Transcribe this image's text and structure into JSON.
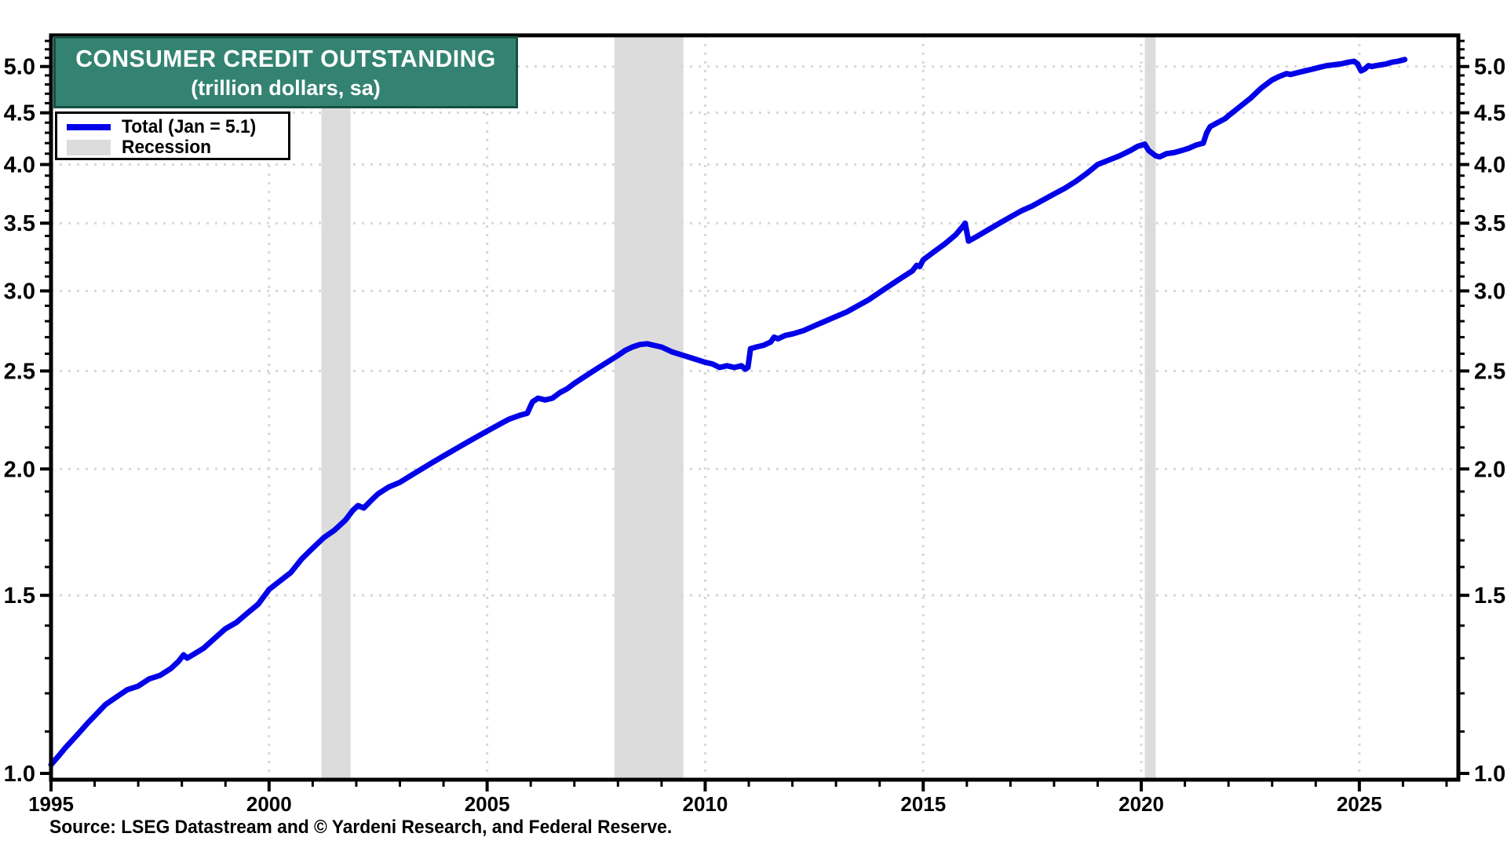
{
  "title": {
    "line1": "CONSUMER CREDIT OUTSTANDING",
    "line2": "(trillion dollars, sa)"
  },
  "legend": {
    "total_label": "Total  (Jan = 5.1)",
    "recession_label": "Recession"
  },
  "source": "Source: LSEG Datastream and © Yardeni Research, and Federal Reserve.",
  "colors": {
    "line": "#0202e8",
    "recession_band": "#dcdcdc",
    "title_bg": "#348372",
    "title_border": "#174f43",
    "grid": "#d8d8d8",
    "axis": "#000000",
    "label_text": "#000000"
  },
  "chart_data": {
    "type": "line",
    "title": "CONSUMER CREDIT OUTSTANDING (trillion dollars, sa)",
    "y_scale": "log",
    "y_range": [
      1.0,
      5.37
    ],
    "x_range": [
      1995,
      2027.27
    ],
    "grid": "dotted",
    "legend_position": "top-left",
    "y_ticks": [
      1.0,
      1.5,
      2.0,
      2.5,
      3.0,
      3.5,
      4.0,
      4.5,
      5.0
    ],
    "y_tick_labels": [
      "1.0",
      "1.5",
      "2.0",
      "2.5",
      "3.0",
      "3.5",
      "4.0",
      "4.5",
      "5.0"
    ],
    "y_minor_step": 0.1,
    "x_ticks_major": [
      1995,
      2000,
      2005,
      2010,
      2015,
      2020,
      2025
    ],
    "x_tick_labels": [
      "1995",
      "2000",
      "2005",
      "2010",
      "2015",
      "2020",
      "2025"
    ],
    "x_minor_step": 1,
    "recessions": [
      [
        2001.2,
        2001.87
      ],
      [
        2007.92,
        2009.5
      ],
      [
        2020.08,
        2020.33
      ]
    ],
    "series": [
      {
        "name": "Total (Jan = 5.1)",
        "points": [
          [
            1995.0,
            1.02
          ],
          [
            1995.17,
            1.04
          ],
          [
            1995.33,
            1.06
          ],
          [
            1995.5,
            1.08
          ],
          [
            1995.67,
            1.1
          ],
          [
            1995.83,
            1.12
          ],
          [
            1996.0,
            1.14
          ],
          [
            1996.25,
            1.17
          ],
          [
            1996.5,
            1.19
          ],
          [
            1996.75,
            1.21
          ],
          [
            1997.0,
            1.22
          ],
          [
            1997.25,
            1.24
          ],
          [
            1997.5,
            1.25
          ],
          [
            1997.75,
            1.27
          ],
          [
            1997.92,
            1.29
          ],
          [
            1998.04,
            1.31
          ],
          [
            1998.12,
            1.3
          ],
          [
            1998.25,
            1.31
          ],
          [
            1998.5,
            1.33
          ],
          [
            1998.75,
            1.36
          ],
          [
            1999.0,
            1.39
          ],
          [
            1999.25,
            1.41
          ],
          [
            1999.5,
            1.44
          ],
          [
            1999.75,
            1.47
          ],
          [
            2000.0,
            1.52
          ],
          [
            2000.25,
            1.55
          ],
          [
            2000.5,
            1.58
          ],
          [
            2000.75,
            1.63
          ],
          [
            2001.0,
            1.67
          ],
          [
            2001.25,
            1.71
          ],
          [
            2001.5,
            1.74
          ],
          [
            2001.75,
            1.78
          ],
          [
            2001.92,
            1.82
          ],
          [
            2002.04,
            1.84
          ],
          [
            2002.17,
            1.83
          ],
          [
            2002.33,
            1.86
          ],
          [
            2002.5,
            1.89
          ],
          [
            2002.75,
            1.92
          ],
          [
            2003.0,
            1.94
          ],
          [
            2003.25,
            1.97
          ],
          [
            2003.5,
            2.0
          ],
          [
            2003.75,
            2.03
          ],
          [
            2004.0,
            2.06
          ],
          [
            2004.25,
            2.09
          ],
          [
            2004.5,
            2.12
          ],
          [
            2004.75,
            2.15
          ],
          [
            2005.0,
            2.18
          ],
          [
            2005.25,
            2.21
          ],
          [
            2005.5,
            2.24
          ],
          [
            2005.75,
            2.26
          ],
          [
            2005.92,
            2.27
          ],
          [
            2006.04,
            2.33
          ],
          [
            2006.17,
            2.35
          ],
          [
            2006.33,
            2.34
          ],
          [
            2006.5,
            2.35
          ],
          [
            2006.67,
            2.38
          ],
          [
            2006.83,
            2.4
          ],
          [
            2007.0,
            2.43
          ],
          [
            2007.25,
            2.47
          ],
          [
            2007.5,
            2.51
          ],
          [
            2007.75,
            2.55
          ],
          [
            2008.0,
            2.59
          ],
          [
            2008.17,
            2.62
          ],
          [
            2008.33,
            2.64
          ],
          [
            2008.5,
            2.655
          ],
          [
            2008.67,
            2.66
          ],
          [
            2008.83,
            2.65
          ],
          [
            2009.0,
            2.64
          ],
          [
            2009.25,
            2.61
          ],
          [
            2009.5,
            2.59
          ],
          [
            2009.75,
            2.57
          ],
          [
            2010.0,
            2.55
          ],
          [
            2010.17,
            2.54
          ],
          [
            2010.33,
            2.52
          ],
          [
            2010.5,
            2.53
          ],
          [
            2010.67,
            2.52
          ],
          [
            2010.83,
            2.53
          ],
          [
            2010.92,
            2.51
          ],
          [
            2010.98,
            2.52
          ],
          [
            2011.04,
            2.63
          ],
          [
            2011.17,
            2.64
          ],
          [
            2011.33,
            2.65
          ],
          [
            2011.5,
            2.67
          ],
          [
            2011.58,
            2.7
          ],
          [
            2011.67,
            2.69
          ],
          [
            2011.83,
            2.71
          ],
          [
            2012.0,
            2.72
          ],
          [
            2012.25,
            2.74
          ],
          [
            2012.5,
            2.77
          ],
          [
            2012.75,
            2.8
          ],
          [
            2013.0,
            2.83
          ],
          [
            2013.25,
            2.86
          ],
          [
            2013.5,
            2.9
          ],
          [
            2013.75,
            2.94
          ],
          [
            2014.0,
            2.99
          ],
          [
            2014.25,
            3.04
          ],
          [
            2014.5,
            3.09
          ],
          [
            2014.75,
            3.14
          ],
          [
            2014.85,
            3.18
          ],
          [
            2014.92,
            3.17
          ],
          [
            2015.0,
            3.22
          ],
          [
            2015.25,
            3.28
          ],
          [
            2015.5,
            3.34
          ],
          [
            2015.75,
            3.41
          ],
          [
            2015.92,
            3.48
          ],
          [
            2015.96,
            3.5
          ],
          [
            2016.04,
            3.36
          ],
          [
            2016.25,
            3.4
          ],
          [
            2016.5,
            3.45
          ],
          [
            2016.75,
            3.5
          ],
          [
            2017.0,
            3.55
          ],
          [
            2017.25,
            3.6
          ],
          [
            2017.5,
            3.64
          ],
          [
            2017.75,
            3.69
          ],
          [
            2018.0,
            3.74
          ],
          [
            2018.25,
            3.79
          ],
          [
            2018.5,
            3.85
          ],
          [
            2018.75,
            3.92
          ],
          [
            2019.0,
            4.0
          ],
          [
            2019.25,
            4.04
          ],
          [
            2019.5,
            4.08
          ],
          [
            2019.75,
            4.13
          ],
          [
            2019.92,
            4.17
          ],
          [
            2020.08,
            4.19
          ],
          [
            2020.17,
            4.13
          ],
          [
            2020.33,
            4.08
          ],
          [
            2020.42,
            4.07
          ],
          [
            2020.58,
            4.1
          ],
          [
            2020.75,
            4.11
          ],
          [
            2020.92,
            4.13
          ],
          [
            2021.08,
            4.15
          ],
          [
            2021.25,
            4.18
          ],
          [
            2021.42,
            4.2
          ],
          [
            2021.5,
            4.3
          ],
          [
            2021.58,
            4.36
          ],
          [
            2021.75,
            4.4
          ],
          [
            2021.92,
            4.44
          ],
          [
            2022.0,
            4.47
          ],
          [
            2022.25,
            4.56
          ],
          [
            2022.5,
            4.65
          ],
          [
            2022.75,
            4.76
          ],
          [
            2023.0,
            4.85
          ],
          [
            2023.17,
            4.89
          ],
          [
            2023.33,
            4.92
          ],
          [
            2023.42,
            4.91
          ],
          [
            2023.58,
            4.93
          ],
          [
            2023.75,
            4.95
          ],
          [
            2023.92,
            4.97
          ],
          [
            2024.08,
            4.99
          ],
          [
            2024.25,
            5.01
          ],
          [
            2024.42,
            5.02
          ],
          [
            2024.58,
            5.03
          ],
          [
            2024.75,
            5.05
          ],
          [
            2024.88,
            5.06
          ],
          [
            2024.96,
            5.03
          ],
          [
            2025.04,
            4.95
          ],
          [
            2025.12,
            4.97
          ],
          [
            2025.21,
            5.01
          ],
          [
            2025.29,
            5.0
          ],
          [
            2025.38,
            5.01
          ],
          [
            2025.5,
            5.02
          ],
          [
            2025.62,
            5.03
          ],
          [
            2025.75,
            5.05
          ],
          [
            2025.88,
            5.06
          ],
          [
            2026.04,
            5.08
          ]
        ]
      }
    ]
  }
}
